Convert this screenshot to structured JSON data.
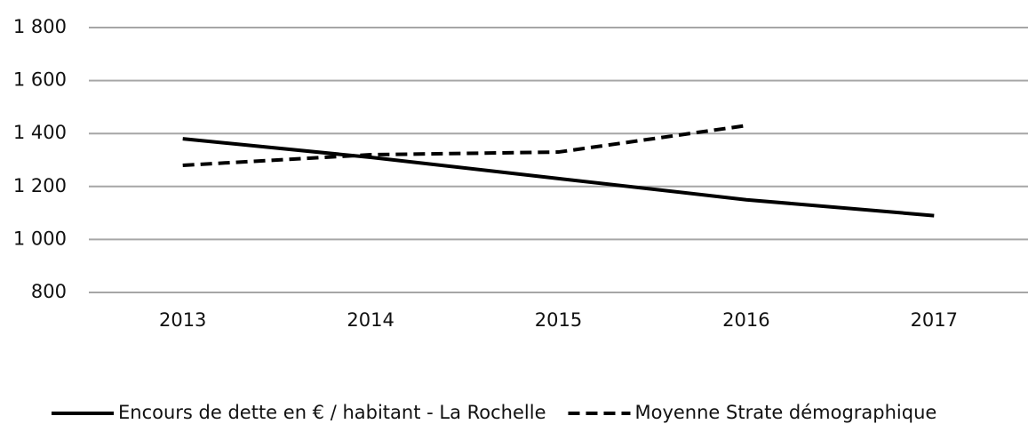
{
  "chart_data": {
    "type": "line",
    "categories": [
      "2013",
      "2014",
      "2015",
      "2016",
      "2017"
    ],
    "series": [
      {
        "name": "Encours de dette en € / habitant - La Rochelle",
        "color": "#000000",
        "dash": "solid",
        "values": [
          1380,
          1310,
          1230,
          1150,
          1090
        ]
      },
      {
        "name": "Moyenne Strate démographique",
        "color": "#000000",
        "dash": "dashed",
        "values": [
          1280,
          1320,
          1330,
          1430,
          null
        ]
      }
    ],
    "ylim": [
      800,
      1800
    ],
    "yticks": [
      800,
      {
        "value": 1000,
        "label": "1 000"
      },
      {
        "value": 1200,
        "label": "1 200"
      },
      {
        "value": 1400,
        "label": "1 400"
      },
      {
        "value": 1600,
        "label": "1 600"
      },
      {
        "value": 1800,
        "label": "1 800"
      }
    ],
    "grid": true,
    "legend": "bottom"
  }
}
